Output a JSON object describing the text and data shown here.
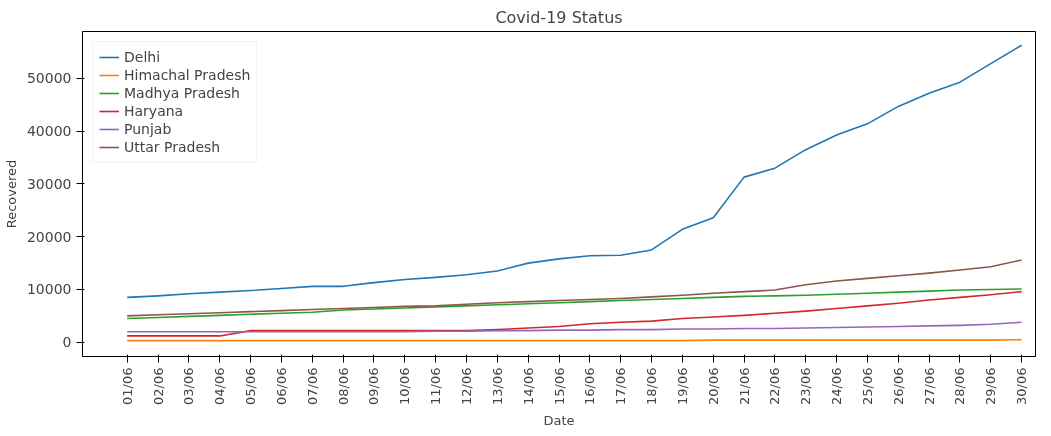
{
  "chart_data": {
    "type": "line",
    "title": "Covid-19 Status",
    "xlabel": "Date",
    "ylabel": "Recovered",
    "categories": [
      "01/06",
      "02/06",
      "03/06",
      "04/06",
      "05/06",
      "06/06",
      "07/06",
      "08/06",
      "09/06",
      "10/06",
      "11/06",
      "12/06",
      "13/06",
      "14/06",
      "15/06",
      "16/06",
      "17/06",
      "18/06",
      "19/06",
      "20/06",
      "21/06",
      "22/06",
      "23/06",
      "24/06",
      "25/06",
      "26/06",
      "27/06",
      "28/06",
      "29/06",
      "30/06"
    ],
    "series": [
      {
        "name": "Delhi",
        "color": "#1f77b4",
        "values": [
          8500,
          8800,
          9200,
          9500,
          9800,
          10200,
          10600,
          10600,
          11300,
          11900,
          12300,
          12800,
          13500,
          15000,
          15800,
          16400,
          16500,
          17500,
          21400,
          23600,
          31300,
          33000,
          36500,
          39300,
          41400,
          44700,
          47200,
          49300,
          52800,
          56300
        ]
      },
      {
        "name": "Himachal Pradesh",
        "color": "#ff7f0e",
        "values": [
          300,
          300,
          300,
          300,
          300,
          300,
          300,
          300,
          300,
          300,
          300,
          300,
          300,
          300,
          300,
          300,
          300,
          300,
          300,
          400,
          400,
          400,
          400,
          400,
          400,
          400,
          400,
          400,
          400,
          500
        ]
      },
      {
        "name": "Madhya Pradesh",
        "color": "#2ca02c",
        "values": [
          4500,
          4700,
          4900,
          5100,
          5300,
          5500,
          5700,
          6100,
          6300,
          6500,
          6700,
          6900,
          7100,
          7300,
          7500,
          7700,
          7900,
          8100,
          8300,
          8500,
          8700,
          8800,
          8900,
          9100,
          9300,
          9500,
          9700,
          9900,
          10000,
          10100
        ]
      },
      {
        "name": "Haryana",
        "color": "#d62728",
        "values": [
          1200,
          1200,
          1200,
          1200,
          2200,
          2200,
          2200,
          2200,
          2200,
          2200,
          2200,
          2200,
          2400,
          2700,
          3000,
          3500,
          3800,
          4000,
          4500,
          4800,
          5100,
          5500,
          5900,
          6400,
          6900,
          7400,
          8000,
          8500,
          9000,
          9600
        ]
      },
      {
        "name": "Punjab",
        "color": "#9467bd",
        "values": [
          2000,
          2000,
          2000,
          2000,
          2000,
          2000,
          2000,
          2000,
          2000,
          2000,
          2100,
          2100,
          2200,
          2200,
          2300,
          2300,
          2400,
          2400,
          2500,
          2500,
          2600,
          2600,
          2700,
          2800,
          2900,
          3000,
          3100,
          3200,
          3400,
          3800
        ]
      },
      {
        "name": "Uttar Pradesh",
        "color": "#8c564b",
        "values": [
          5000,
          5200,
          5400,
          5600,
          5800,
          6000,
          6200,
          6400,
          6600,
          6800,
          6900,
          7200,
          7500,
          7700,
          7900,
          8100,
          8300,
          8600,
          8900,
          9300,
          9600,
          9900,
          10900,
          11600,
          12100,
          12600,
          13100,
          13700,
          14300,
          15600
        ]
      }
    ],
    "ylim": [
      -2700,
      58900
    ],
    "yticks": [
      0,
      10000,
      20000,
      30000,
      40000,
      50000
    ],
    "grid": false,
    "legend": "top left",
    "marker": "none",
    "line_style": "solid"
  }
}
